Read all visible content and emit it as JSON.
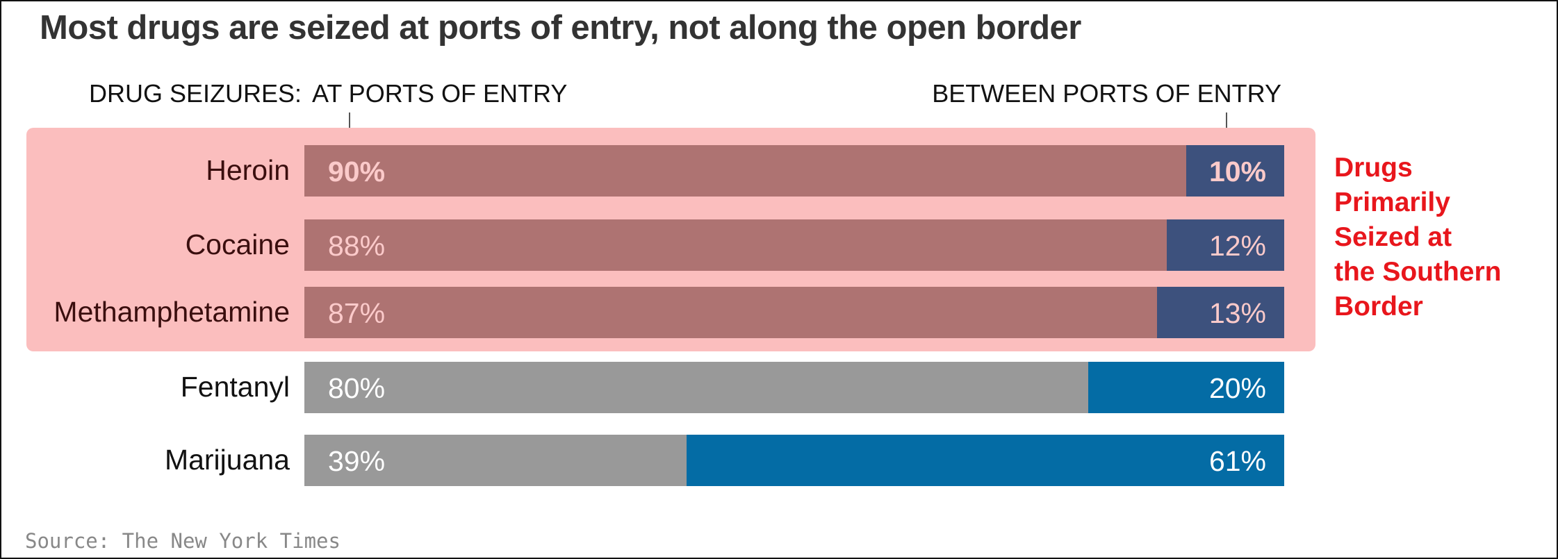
{
  "title": "Most drugs are seized at ports of entry, not along the open border",
  "header": {
    "drug_seizures": "DRUG SEIZURES:",
    "at_ports": "AT PORTS OF ENTRY",
    "between_ports": "BETWEEN PORTS OF ENTRY"
  },
  "callout": {
    "lines": [
      "Drugs",
      "Primarily",
      "Seized at",
      "the Southern",
      "Border"
    ]
  },
  "source": "Source: The New York Times",
  "colors": {
    "highlight_bg": "#fbbebe",
    "at_highlighted": "#ae7372",
    "between_highlighted": "#3d517d",
    "at_normal": "#999999",
    "between_normal": "#046ca5",
    "callout": "#e8161c"
  },
  "chart_data": {
    "type": "bar",
    "stacked": true,
    "orientation": "horizontal",
    "categories": [
      "Heroin",
      "Cocaine",
      "Methamphetamine",
      "Fentanyl",
      "Marijuana"
    ],
    "series": [
      {
        "name": "AT PORTS OF ENTRY",
        "values": [
          90,
          88,
          87,
          80,
          39
        ]
      },
      {
        "name": "BETWEEN PORTS OF ENTRY",
        "values": [
          10,
          12,
          13,
          20,
          61
        ]
      }
    ],
    "value_labels_at": [
      "90%",
      "88%",
      "87%",
      "80%",
      "39%"
    ],
    "value_labels_between": [
      "10%",
      "12%",
      "13%",
      "20%",
      "61%"
    ],
    "highlighted": [
      true,
      true,
      true,
      false,
      false
    ],
    "xlim": [
      0,
      100
    ],
    "unit": "%",
    "title": "Most drugs are seized at ports of entry, not along the open border"
  }
}
